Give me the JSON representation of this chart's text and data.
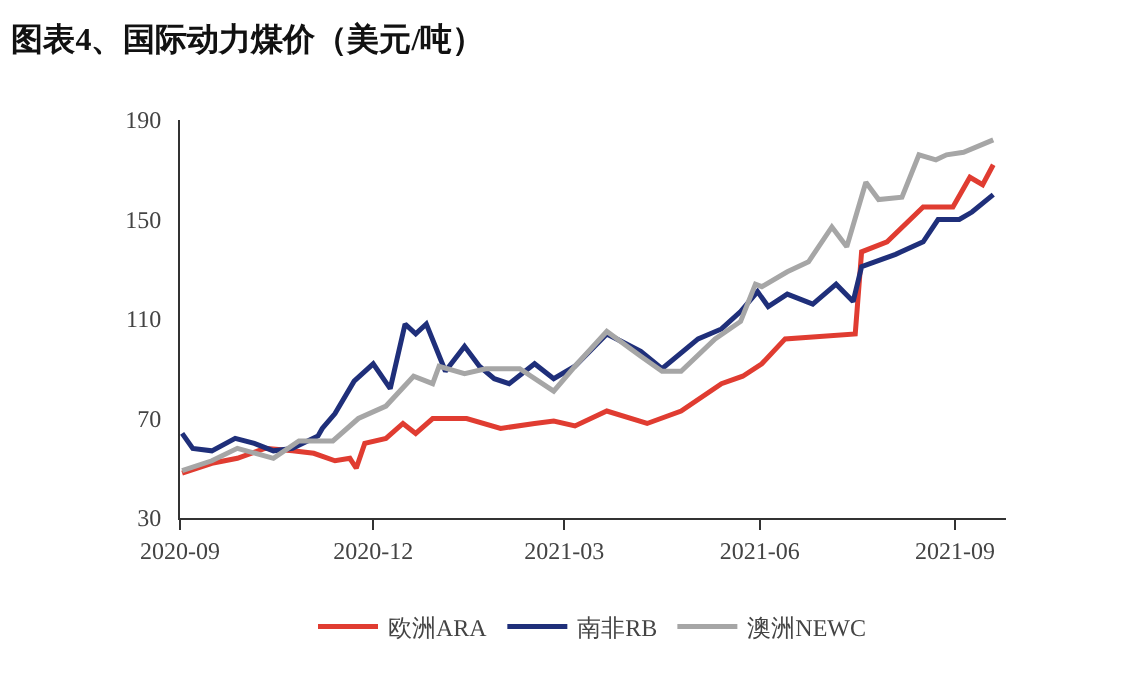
{
  "chart_data": {
    "type": "line",
    "title": "图表4、国际动力煤价（美元/吨）",
    "xlim": [
      "2020-09-01",
      "2021-09-25"
    ],
    "xticks": [
      {
        "value": "2020-09-01",
        "label": "2020-09"
      },
      {
        "value": "2020-12-01",
        "label": "2020-12"
      },
      {
        "value": "2021-03-01",
        "label": "2021-03"
      },
      {
        "value": "2021-06-01",
        "label": "2021-06"
      },
      {
        "value": "2021-09-01",
        "label": "2021-09"
      }
    ],
    "ylim": [
      30,
      190
    ],
    "yticks": [
      30,
      70,
      110,
      150,
      190
    ],
    "legend": "bottom",
    "series": [
      {
        "name": "欧洲ARA",
        "color": "#e03c31",
        "x": [
          "2020-09-02",
          "2020-09-16",
          "2020-09-28",
          "2020-10-11",
          "2020-10-24",
          "2020-11-03",
          "2020-11-13",
          "2020-11-20",
          "2020-11-23",
          "2020-11-27",
          "2020-12-07",
          "2020-12-15",
          "2020-12-21",
          "2020-12-29",
          "2021-01-14",
          "2021-01-30",
          "2021-02-15",
          "2021-02-24",
          "2021-03-06",
          "2021-03-21",
          "2021-04-09",
          "2021-04-25",
          "2021-05-14",
          "2021-05-24",
          "2021-06-02",
          "2021-06-13",
          "2021-07-16",
          "2021-07-19",
          "2021-07-31",
          "2021-08-17",
          "2021-08-31",
          "2021-09-08",
          "2021-09-14",
          "2021-09-19"
        ],
        "values": [
          48,
          52,
          54,
          58,
          57,
          56,
          53,
          54,
          50,
          60,
          62,
          68,
          64,
          70,
          70,
          66,
          68,
          69,
          67,
          73,
          68,
          73,
          84,
          87,
          92,
          102,
          104,
          137,
          141,
          155,
          155,
          167,
          164,
          172
        ]
      },
      {
        "name": "南非RB",
        "color": "#1f2f7a",
        "x": [
          "2020-09-02",
          "2020-09-07",
          "2020-09-16",
          "2020-09-27",
          "2020-10-06",
          "2020-10-15",
          "2020-10-24",
          "2020-11-05",
          "2020-11-07",
          "2020-11-13",
          "2020-11-22",
          "2020-12-01",
          "2020-12-09",
          "2020-12-16",
          "2020-12-21",
          "2020-12-26",
          "2021-01-04",
          "2021-01-13",
          "2021-01-20",
          "2021-01-27",
          "2021-02-03",
          "2021-02-15",
          "2021-02-24",
          "2021-03-06",
          "2021-03-21",
          "2021-04-06",
          "2021-04-16",
          "2021-05-03",
          "2021-05-14",
          "2021-05-23",
          "2021-05-31",
          "2021-06-05",
          "2021-06-14",
          "2021-06-26",
          "2021-07-07",
          "2021-07-15",
          "2021-07-19",
          "2021-08-04",
          "2021-08-17",
          "2021-08-24",
          "2021-09-03",
          "2021-09-09",
          "2021-09-19"
        ],
        "values": [
          64,
          58,
          57,
          62,
          60,
          57,
          58,
          63,
          66,
          72,
          85,
          92,
          82,
          108,
          104,
          108,
          89,
          99,
          91,
          86,
          84,
          92,
          86,
          91,
          104,
          97,
          90,
          102,
          106,
          113,
          121,
          115,
          120,
          116,
          124,
          117,
          131,
          136,
          141,
          150,
          150,
          153,
          160
        ]
      },
      {
        "name": "澳洲NEWC",
        "color": "#a6a6a6",
        "x": [
          "2020-09-02",
          "2020-09-16",
          "2020-09-28",
          "2020-10-15",
          "2020-10-27",
          "2020-11-12",
          "2020-11-24",
          "2020-12-07",
          "2020-12-20",
          "2020-12-29",
          "2021-01-01",
          "2021-01-13",
          "2021-01-23",
          "2021-02-08",
          "2021-02-24",
          "2021-03-06",
          "2021-03-21",
          "2021-04-06",
          "2021-04-16",
          "2021-04-25",
          "2021-05-11",
          "2021-05-23",
          "2021-05-30",
          "2021-06-02",
          "2021-06-14",
          "2021-06-24",
          "2021-07-05",
          "2021-07-12",
          "2021-07-21",
          "2021-07-27",
          "2021-08-07",
          "2021-08-15",
          "2021-08-23",
          "2021-08-28",
          "2021-09-05",
          "2021-09-19"
        ],
        "values": [
          49,
          53,
          58,
          54,
          61,
          61,
          70,
          75,
          87,
          84,
          91,
          88,
          90,
          90,
          81,
          91,
          105,
          95,
          89,
          89,
          102,
          109,
          124,
          123,
          129,
          133,
          147,
          139,
          165,
          158,
          159,
          176,
          174,
          176,
          177,
          182
        ]
      }
    ]
  }
}
